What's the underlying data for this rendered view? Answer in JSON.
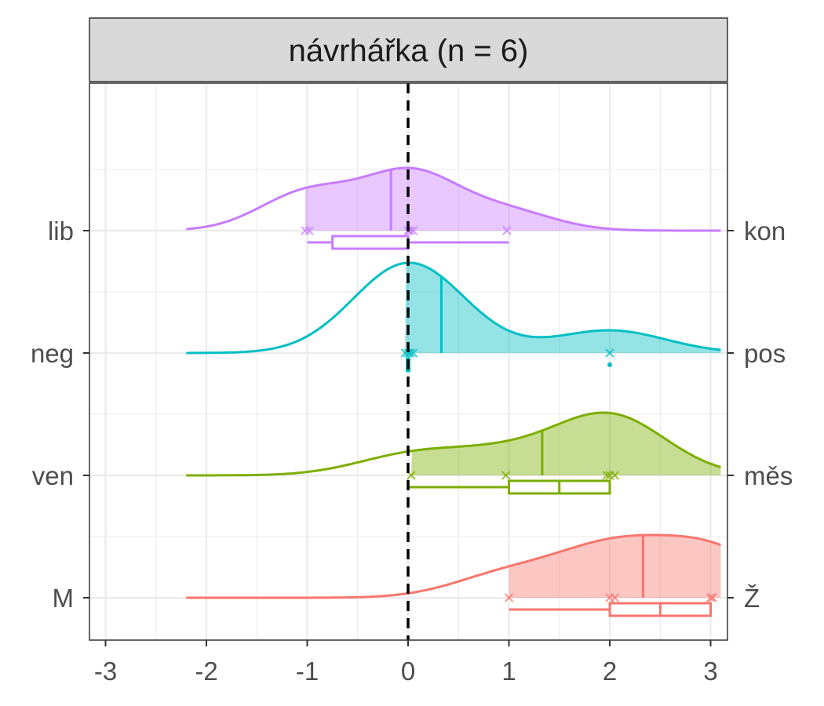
{
  "chart_data": {
    "type": "density-ridgeline",
    "title": "návrhářka (n = 6)",
    "xlim": [
      -3.15,
      3.15
    ],
    "x_ticks": [
      "-3",
      "-2",
      "-1",
      "0",
      "1",
      "2",
      "3"
    ],
    "x_tick_values": [
      -3,
      -2,
      -1,
      0,
      1,
      2,
      3
    ],
    "reference_line_x": 0,
    "grid": true,
    "rows": [
      {
        "left_label": "M",
        "right_label": "Ž",
        "color": "#F8766D",
        "points": [
          1,
          2,
          2.05,
          3,
          3.02
        ],
        "mean": 2.33,
        "box": {
          "whisker_low": 1,
          "q1": 2,
          "median": 2.5,
          "q3": 3,
          "whisker_high": 3
        }
      },
      {
        "left_label": "ven",
        "right_label": "měs",
        "color": "#7CAE00",
        "points": [
          0.03,
          0.97,
          1.97,
          2.0,
          2.05
        ],
        "mean": 1.33,
        "box": {
          "whisker_low": 0,
          "q1": 1,
          "median": 1.5,
          "q3": 2,
          "whisker_high": 2
        }
      },
      {
        "left_label": "neg",
        "right_label": "pos",
        "color": "#00BFC4",
        "points": [
          -0.03,
          0,
          0.02,
          0.05,
          2
        ],
        "mean": 0.33,
        "box": {
          "whisker_low": 0,
          "q1": 0,
          "median": 0,
          "q3": 0,
          "whisker_high": 0
        },
        "outliers": [
          2
        ]
      },
      {
        "left_label": "lib",
        "right_label": "kon",
        "color": "#C77CFF",
        "points": [
          -1.02,
          -0.98,
          0,
          0.02,
          0.05,
          0.98
        ],
        "mean": -0.17,
        "box": {
          "whisker_low": -1,
          "q1": -0.75,
          "median": 0,
          "q3": 0,
          "whisker_high": 1
        }
      }
    ]
  }
}
